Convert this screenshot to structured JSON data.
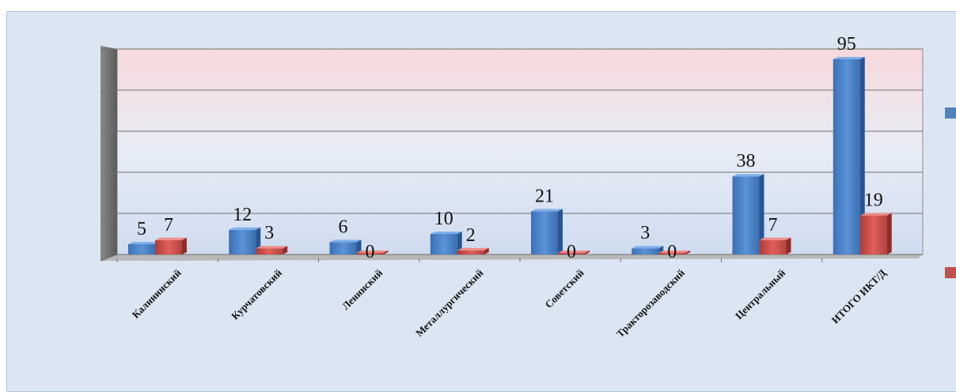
{
  "chart_data": {
    "type": "bar",
    "categories": [
      "Калининский",
      "Курчатовский",
      "Ленинский",
      "Металлургический",
      "Советский",
      "Тракторозаводский",
      "Центральный",
      "ИТОГО ИКТ/Д"
    ],
    "series": [
      {
        "values": [
          5,
          12,
          6,
          10,
          21,
          3,
          38,
          95
        ]
      },
      {
        "values": [
          7,
          3,
          0,
          2,
          0,
          0,
          7,
          19
        ]
      }
    ],
    "ylim": [
      0,
      100
    ],
    "gridlines": [
      0,
      20,
      40,
      60,
      80,
      100
    ],
    "grid": true,
    "legend": "right",
    "colors": [
      "#4f81bd",
      "#c0504d"
    ]
  }
}
